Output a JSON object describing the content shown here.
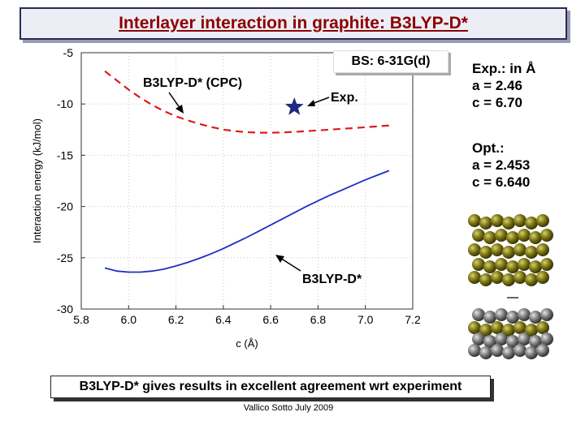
{
  "title": "Interlayer interaction in graphite: B3LYP-D*",
  "basis_set_label": "BS: 6-31G(d)",
  "exp_params": {
    "heading": "Exp.: in Å",
    "a": "a = 2.46",
    "c": "c = 6.70"
  },
  "opt_params": {
    "heading": "Opt.:",
    "a": "a = 2.453",
    "c": "c = 6.640"
  },
  "conclusion": "B3LYP-D* gives results in excellent agreement wrt experiment",
  "footer": "Vallico Sotto  July 2009",
  "colors": {
    "title": "#8b0000",
    "solid_series": "#1f2fbf",
    "dashed_series": "#e01a1a",
    "star": "#1f2a80"
  },
  "chart_data": {
    "type": "line",
    "xlabel": "c (Å)",
    "ylabel": "Interaction energy (kJ/mol)",
    "xlim": [
      5.8,
      7.2
    ],
    "ylim": [
      -30,
      -5
    ],
    "xticks": [
      "5.8",
      "6.0",
      "6.2",
      "6.4",
      "6.6",
      "6.8",
      "7.0",
      "7.2"
    ],
    "yticks": [
      "-5",
      "-10",
      "-15",
      "-20",
      "-25",
      "-30"
    ],
    "grid": true,
    "series": [
      {
        "name": "B3LYP-D* (CPC)",
        "style": "dashed",
        "color": "#e01a1a",
        "x": [
          5.9,
          5.95,
          6.0,
          6.05,
          6.1,
          6.15,
          6.2,
          6.25,
          6.3,
          6.35,
          6.4,
          6.45,
          6.5,
          6.55,
          6.6,
          6.65,
          6.7,
          6.75,
          6.8,
          6.85,
          6.9,
          6.95,
          7.0,
          7.05,
          7.1
        ],
        "y": [
          -6.8,
          -7.7,
          -8.6,
          -9.4,
          -10.1,
          -10.7,
          -11.2,
          -11.6,
          -11.95,
          -12.25,
          -12.5,
          -12.65,
          -12.75,
          -12.8,
          -12.8,
          -12.78,
          -12.72,
          -12.65,
          -12.58,
          -12.5,
          -12.42,
          -12.35,
          -12.27,
          -12.18,
          -12.1
        ]
      },
      {
        "name": "B3LYP-D*",
        "style": "solid",
        "color": "#1f2fbf",
        "x": [
          5.9,
          5.95,
          6.0,
          6.05,
          6.1,
          6.15,
          6.2,
          6.25,
          6.3,
          6.35,
          6.4,
          6.45,
          6.5,
          6.55,
          6.6,
          6.65,
          6.7,
          6.75,
          6.8,
          6.85,
          6.9,
          6.95,
          7.0,
          7.05,
          7.1
        ],
        "y": [
          -26.0,
          -26.3,
          -26.4,
          -26.4,
          -26.3,
          -26.1,
          -25.8,
          -25.45,
          -25.05,
          -24.6,
          -24.1,
          -23.55,
          -23.0,
          -22.4,
          -21.8,
          -21.2,
          -20.6,
          -20.0,
          -19.45,
          -18.9,
          -18.4,
          -17.9,
          -17.4,
          -16.95,
          -16.5
        ]
      }
    ],
    "points": [
      {
        "name": "Exp.",
        "x": 6.7,
        "y": -10.3,
        "marker": "star"
      }
    ],
    "annotations": [
      {
        "text": "B3LYP-D* (CPC)",
        "target_series": 0
      },
      {
        "text": "Exp.",
        "target_point": 0
      },
      {
        "text": "B3LYP-D*",
        "target_series": 1
      }
    ]
  }
}
